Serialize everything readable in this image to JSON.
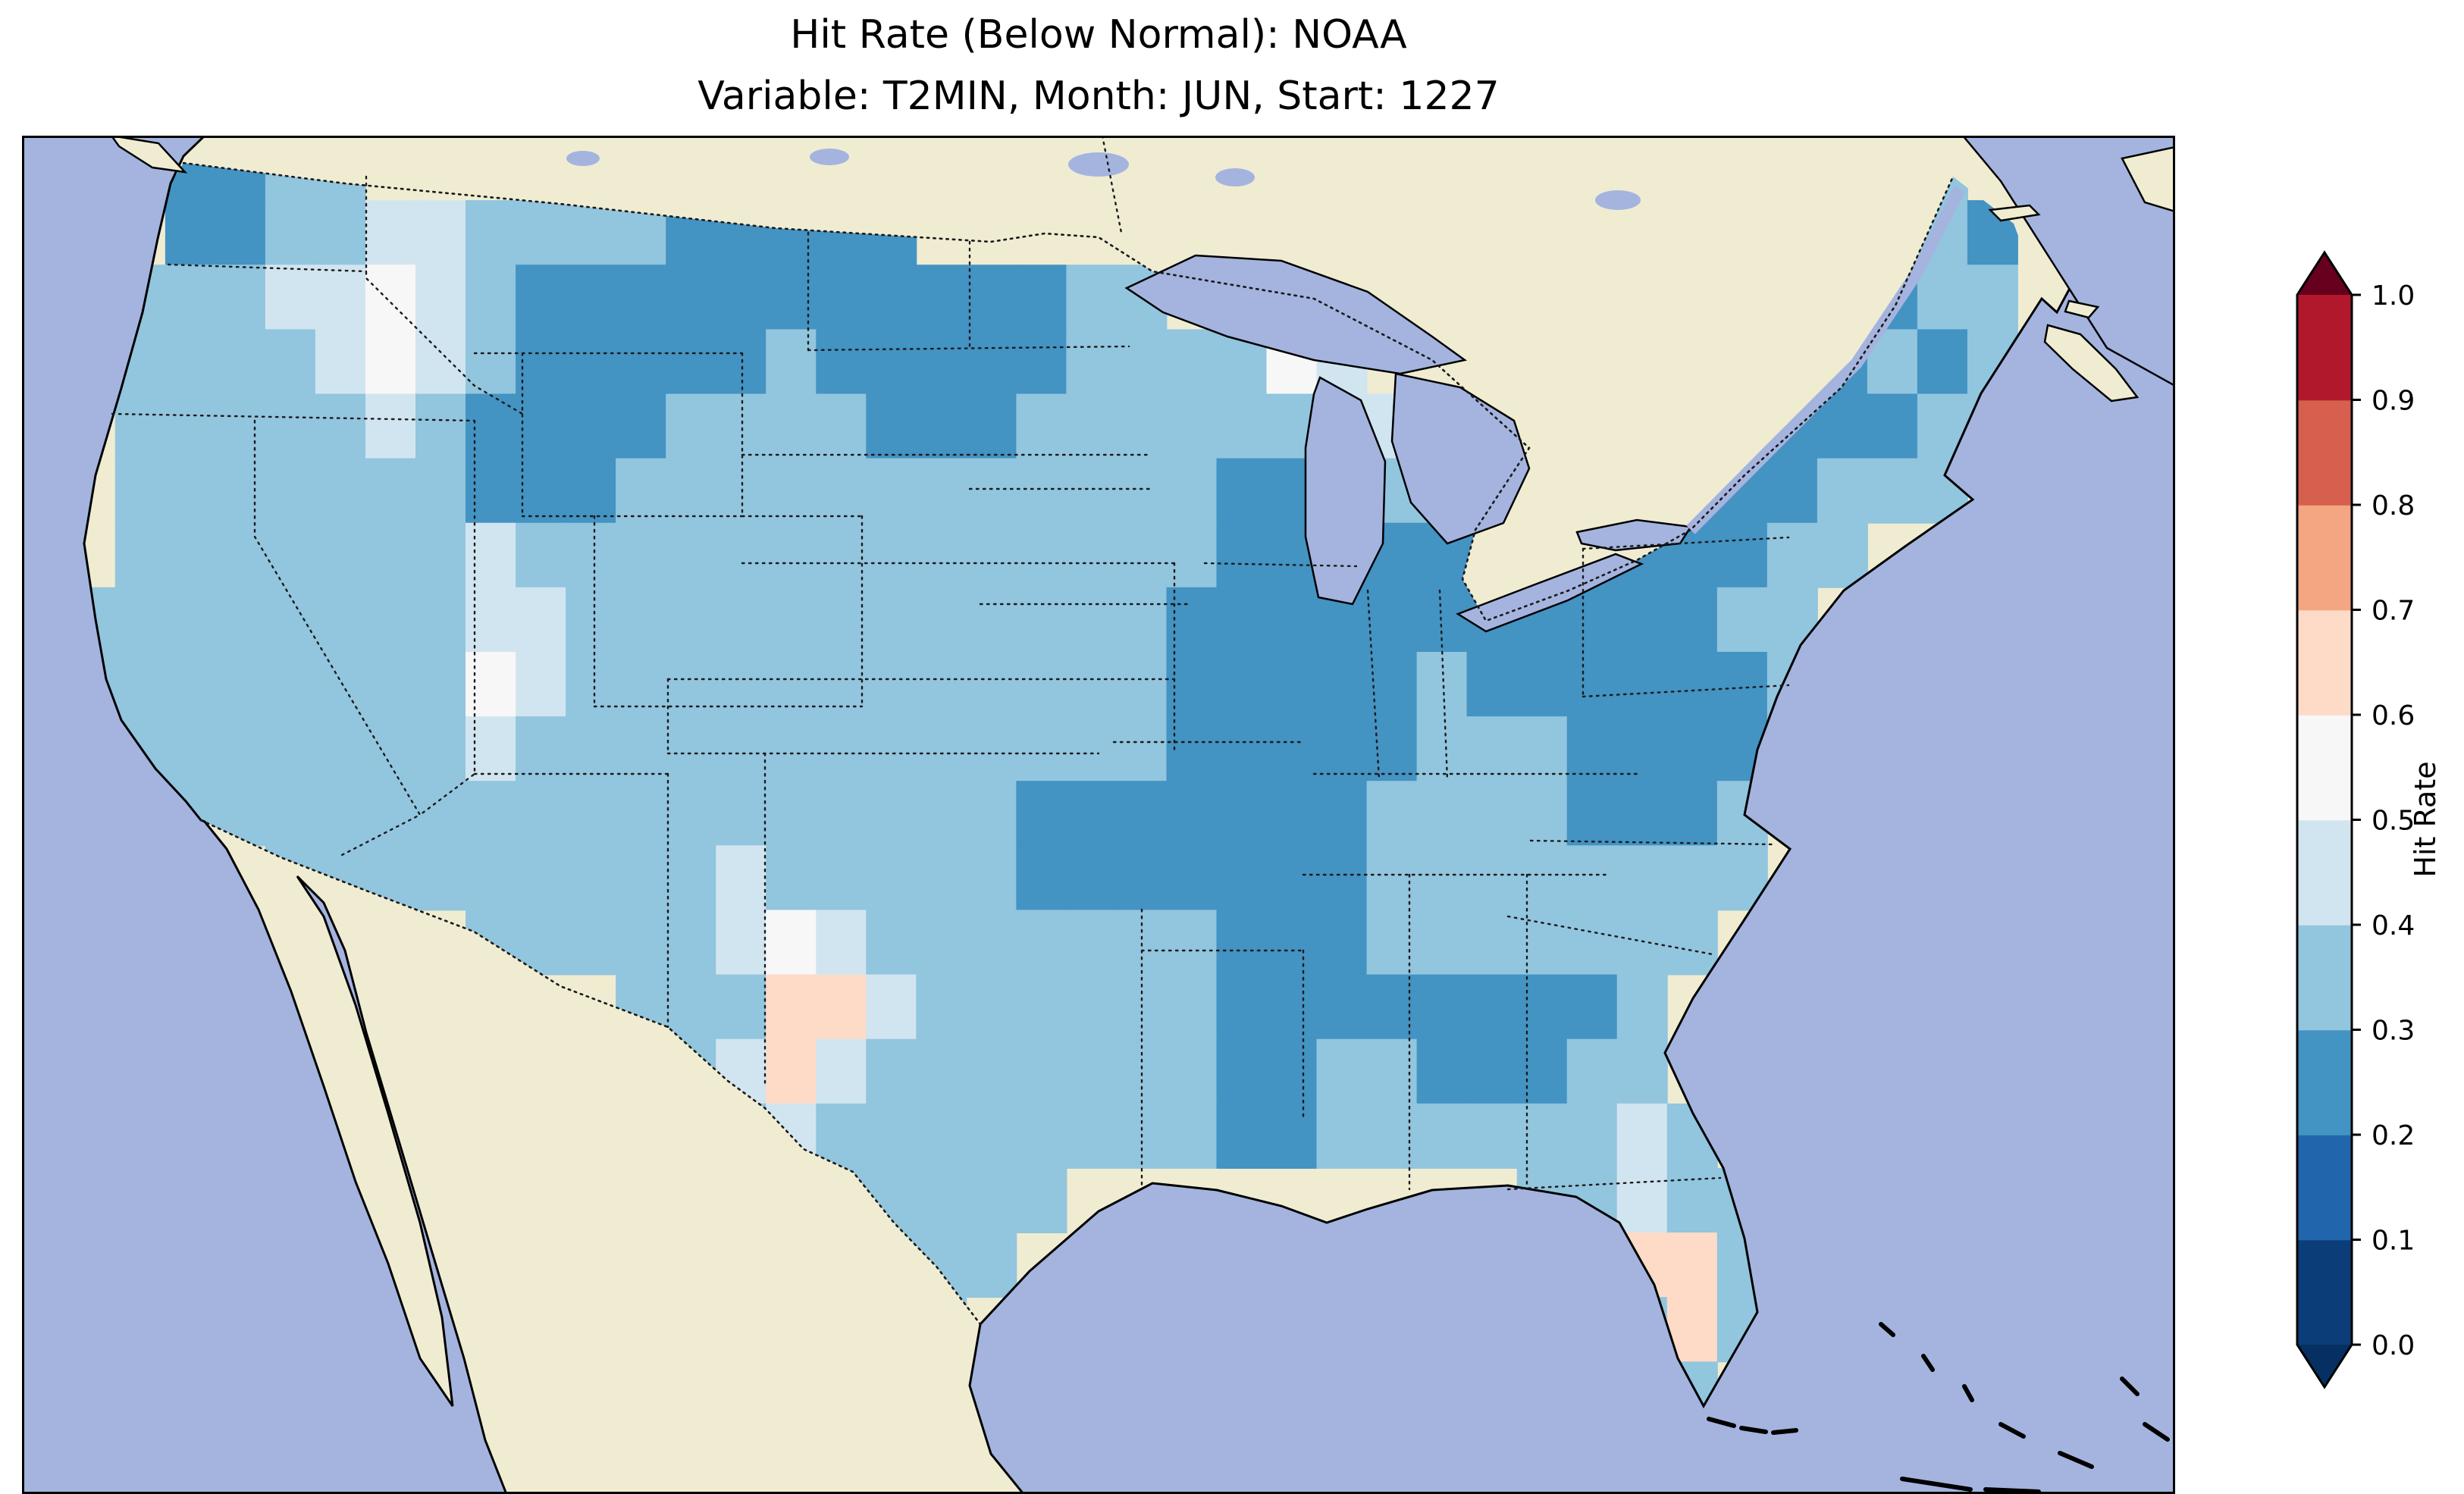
{
  "title": {
    "line1": "Hit Rate (Below Normal): NOAA",
    "line2": "Variable: T2MIN, Month: JUN, Start: 1227"
  },
  "chart_data": {
    "type": "heatmap",
    "title": "Hit Rate (Below Normal): NOAA",
    "subtitle": "Variable: T2MIN, Month: JUN, Start: 1227",
    "metric": "Hit Rate (Below Normal)",
    "source": "NOAA",
    "variable": "T2MIN",
    "month": "JUN",
    "start": "1227",
    "region": "Contiguous United States (map with Canada/Mexico context)",
    "colorbar": {
      "label": "Hit Rate",
      "orientation": "vertical",
      "extend": "both",
      "ticks": [
        "0.0",
        "0.1",
        "0.2",
        "0.3",
        "0.4",
        "0.5",
        "0.6",
        "0.7",
        "0.8",
        "0.9",
        "1.0"
      ],
      "bins": [
        {
          "from": 0.0,
          "to": 0.1,
          "color": "#0b3d78"
        },
        {
          "from": 0.1,
          "to": 0.2,
          "color": "#2166ac"
        },
        {
          "from": 0.2,
          "to": 0.3,
          "color": "#4393c3"
        },
        {
          "from": 0.3,
          "to": 0.4,
          "color": "#92c5de"
        },
        {
          "from": 0.4,
          "to": 0.5,
          "color": "#d1e5f0"
        },
        {
          "from": 0.5,
          "to": 0.6,
          "color": "#f7f7f7"
        },
        {
          "from": 0.6,
          "to": 0.7,
          "color": "#fddbc7"
        },
        {
          "from": 0.7,
          "to": 0.8,
          "color": "#f4a582"
        },
        {
          "from": 0.8,
          "to": 0.9,
          "color": "#d6604d"
        },
        {
          "from": 0.9,
          "to": 1.0,
          "color": "#b2182b"
        }
      ],
      "under_color": "#053061",
      "over_color": "#67001f"
    },
    "map_colors": {
      "ocean": "#a4b4df",
      "land": "#f0ecd2",
      "coastline": "#000000",
      "borders": "#1a1a1a"
    },
    "grid": {
      "cols": 40,
      "rows": 20,
      "encoding": "each char = hit-rate bin (digit d means value in [d/10,(d+1)/10)); '.' = outside data region",
      "palette": {
        "2": "#4393c3",
        "3": "#92c5de",
        "4": "#d1e5f0",
        "5": "#f7f7f7",
        "6": "#fddbc7"
      },
      "rows_encoded": [
        "..2233...............................3..",
        "..223344333322222...................332.",
        ".333445432222222222233.344.......322233.",
        ".3333454322222322222333354......2222323.",
        ".33333432222333322233333344....22222233.",
        ".333333322233333333333322233..22222333..",
        ".33333334333333333333332222222222233....",
        "33333333443333333333332222222222233.....",
        "33333333543333333333332222232222223.....",
        "33333333433333333333332222233322223.....",
        "3333333333333333333222222233332223......",
        "....333333333433333222222233333333......",
        "........3333345433333332223333333.......",
        "...........333664333333222222223........",
        "............34643333333223322233........",
        ".............34333333332233333343.......",
        "..............333333.........33433......",
        "................333............663......",
        ".................3.............363......",
        "................................3......."
      ]
    }
  }
}
